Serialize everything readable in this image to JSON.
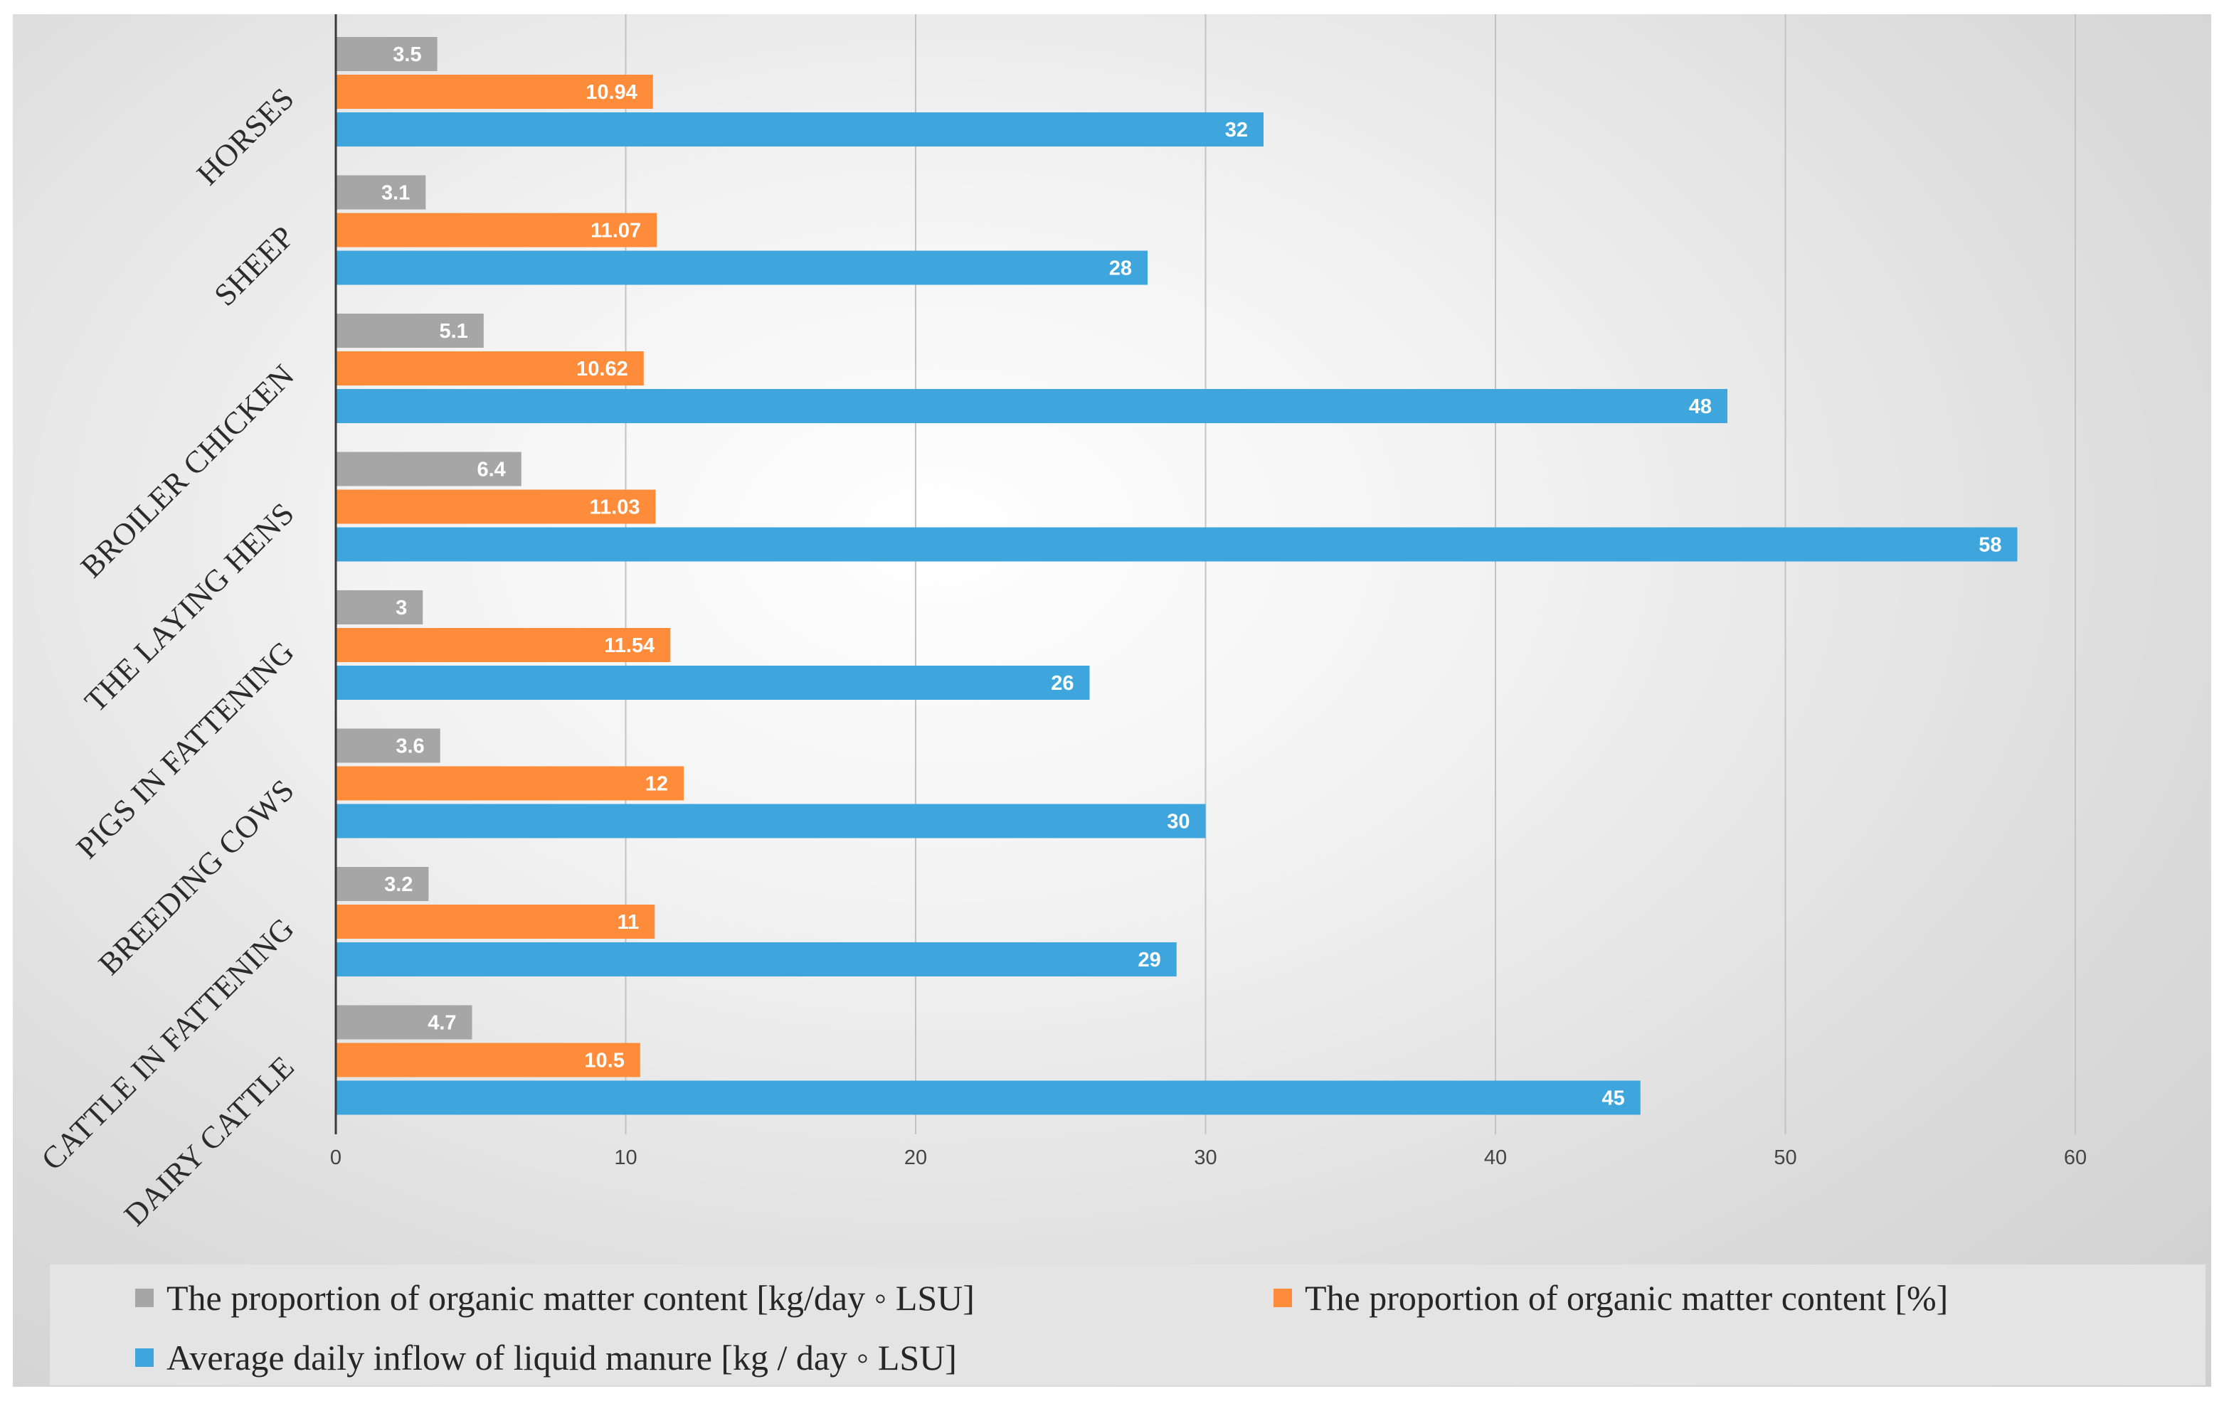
{
  "chart_data": {
    "type": "bar",
    "orientation": "horizontal",
    "title": "",
    "xlabel": "",
    "ylabel": "",
    "xlim": [
      0,
      60
    ],
    "ticks": [
      "0",
      "10",
      "20",
      "30",
      "40",
      "50",
      "60"
    ],
    "grid": true,
    "legend_position": "bottom",
    "categories": [
      "HORSES",
      "SHEEP",
      "BROILER CHICKEN",
      "THE LAYING HENS",
      "PIGS IN FATTENING",
      "BREEDING COWS",
      "CATTLE IN FATTENING",
      "DAIRY CATTLE"
    ],
    "series": [
      {
        "name": "The proportion of organic matter content [kg/day ◦ LSU]",
        "color": "#a6a6a6",
        "values": [
          3.5,
          3.1,
          5.1,
          6.4,
          3,
          3.6,
          3.2,
          4.7
        ],
        "labels": [
          "3.5",
          "3.1",
          "5.1",
          "6.4",
          "3",
          "3.6",
          "3.2",
          "4.7"
        ]
      },
      {
        "name": "The proportion of organic matter content [%]",
        "color": "#ff8c3a",
        "values": [
          10.94,
          11.07,
          10.62,
          11.03,
          11.54,
          12,
          11,
          10.5
        ],
        "labels": [
          "10.94",
          "11.07",
          "10.62",
          "11.03",
          "11.54",
          "12",
          "11",
          "10.5"
        ]
      },
      {
        "name": "Average daily inflow of liquid manure [kg / day ◦ LSU]",
        "color": "#3ea6dd",
        "values": [
          32,
          28,
          48,
          58,
          26,
          30,
          29,
          45
        ],
        "labels": [
          "32",
          "28",
          "48",
          "58",
          "26",
          "30",
          "29",
          "45"
        ]
      }
    ]
  }
}
